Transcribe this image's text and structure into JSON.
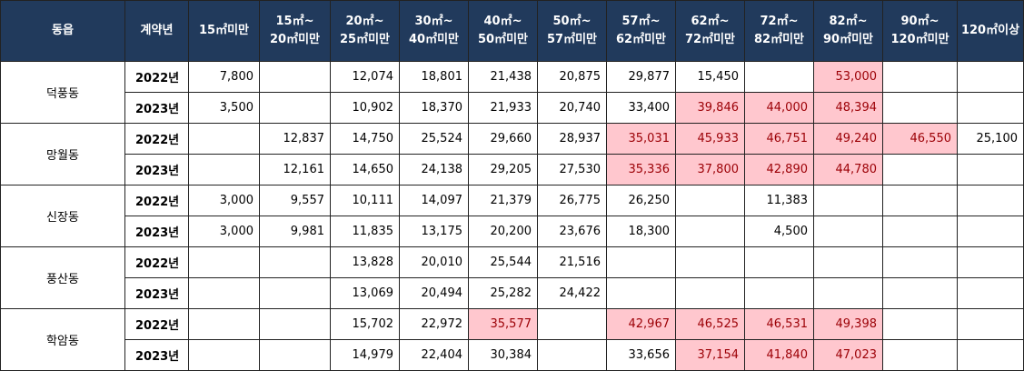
{
  "headers": [
    "동읍",
    "계약년",
    "15㎡미만",
    "15㎡~\n20㎡미만",
    "20㎡~\n25㎡미만",
    "30㎡~\n40㎡미만",
    "40㎡~\n50㎡미만",
    "50㎡~\n57㎡미만",
    "57㎡~\n62㎡미만",
    "62㎡~\n72㎡미만",
    "72㎡~\n82㎡미만",
    "82㎡~\n90㎡미만",
    "90㎡~\n120㎡미만",
    "120㎡이상"
  ],
  "highlight_colors": {
    "fill": "#ffc7ce",
    "text": "#9c0006",
    "header_bg": "#213a5c"
  },
  "groups": [
    {
      "dong": "덕풍동",
      "rows": [
        {
          "year": "2022년",
          "values": [
            "7,800",
            "",
            "12,074",
            "18,801",
            "21,438",
            "20,875",
            "29,877",
            "15,450",
            "",
            "53,000",
            "",
            ""
          ],
          "highlight": [
            false,
            false,
            false,
            false,
            false,
            false,
            false,
            false,
            false,
            true,
            false,
            false
          ]
        },
        {
          "year": "2023년",
          "values": [
            "3,500",
            "",
            "10,902",
            "18,370",
            "21,933",
            "20,740",
            "33,400",
            "39,846",
            "44,000",
            "48,394",
            "",
            ""
          ],
          "highlight": [
            false,
            false,
            false,
            false,
            false,
            false,
            false,
            true,
            true,
            true,
            false,
            false
          ]
        }
      ]
    },
    {
      "dong": "망월동",
      "rows": [
        {
          "year": "2022년",
          "values": [
            "",
            "12,837",
            "14,750",
            "25,524",
            "29,660",
            "28,937",
            "35,031",
            "45,933",
            "46,751",
            "49,240",
            "46,550",
            "25,100"
          ],
          "highlight": [
            false,
            false,
            false,
            false,
            false,
            false,
            true,
            true,
            true,
            true,
            true,
            false
          ]
        },
        {
          "year": "2023년",
          "values": [
            "",
            "12,161",
            "14,650",
            "24,138",
            "29,205",
            "27,530",
            "35,336",
            "37,800",
            "42,890",
            "44,780",
            "",
            ""
          ],
          "highlight": [
            false,
            false,
            false,
            false,
            false,
            false,
            true,
            true,
            true,
            true,
            false,
            false
          ]
        }
      ]
    },
    {
      "dong": "신장동",
      "rows": [
        {
          "year": "2022년",
          "values": [
            "3,000",
            "9,557",
            "10,111",
            "14,097",
            "21,379",
            "26,775",
            "26,250",
            "",
            "11,383",
            "",
            "",
            ""
          ],
          "highlight": [
            false,
            false,
            false,
            false,
            false,
            false,
            false,
            false,
            false,
            false,
            false,
            false
          ]
        },
        {
          "year": "2023년",
          "values": [
            "3,000",
            "9,981",
            "11,835",
            "13,175",
            "20,200",
            "23,676",
            "18,300",
            "",
            "4,500",
            "",
            "",
            ""
          ],
          "highlight": [
            false,
            false,
            false,
            false,
            false,
            false,
            false,
            false,
            false,
            false,
            false,
            false
          ]
        }
      ]
    },
    {
      "dong": "풍산동",
      "rows": [
        {
          "year": "2022년",
          "values": [
            "",
            "",
            "13,828",
            "20,010",
            "25,544",
            "21,516",
            "",
            "",
            "",
            "",
            "",
            ""
          ],
          "highlight": [
            false,
            false,
            false,
            false,
            false,
            false,
            false,
            false,
            false,
            false,
            false,
            false
          ]
        },
        {
          "year": "2023년",
          "values": [
            "",
            "",
            "13,069",
            "20,494",
            "25,282",
            "24,422",
            "",
            "",
            "",
            "",
            "",
            ""
          ],
          "highlight": [
            false,
            false,
            false,
            false,
            false,
            false,
            false,
            false,
            false,
            false,
            false,
            false
          ]
        }
      ]
    },
    {
      "dong": "학암동",
      "rows": [
        {
          "year": "2022년",
          "values": [
            "",
            "",
            "15,702",
            "22,972",
            "35,577",
            "",
            "42,967",
            "46,525",
            "46,531",
            "49,398",
            "",
            ""
          ],
          "highlight": [
            false,
            false,
            false,
            false,
            true,
            false,
            true,
            true,
            true,
            true,
            false,
            false
          ]
        },
        {
          "year": "2023년",
          "values": [
            "",
            "",
            "14,979",
            "22,404",
            "30,384",
            "",
            "33,656",
            "37,154",
            "41,840",
            "47,023",
            "",
            ""
          ],
          "highlight": [
            false,
            false,
            false,
            false,
            false,
            false,
            false,
            true,
            true,
            true,
            false,
            false
          ]
        }
      ]
    }
  ]
}
